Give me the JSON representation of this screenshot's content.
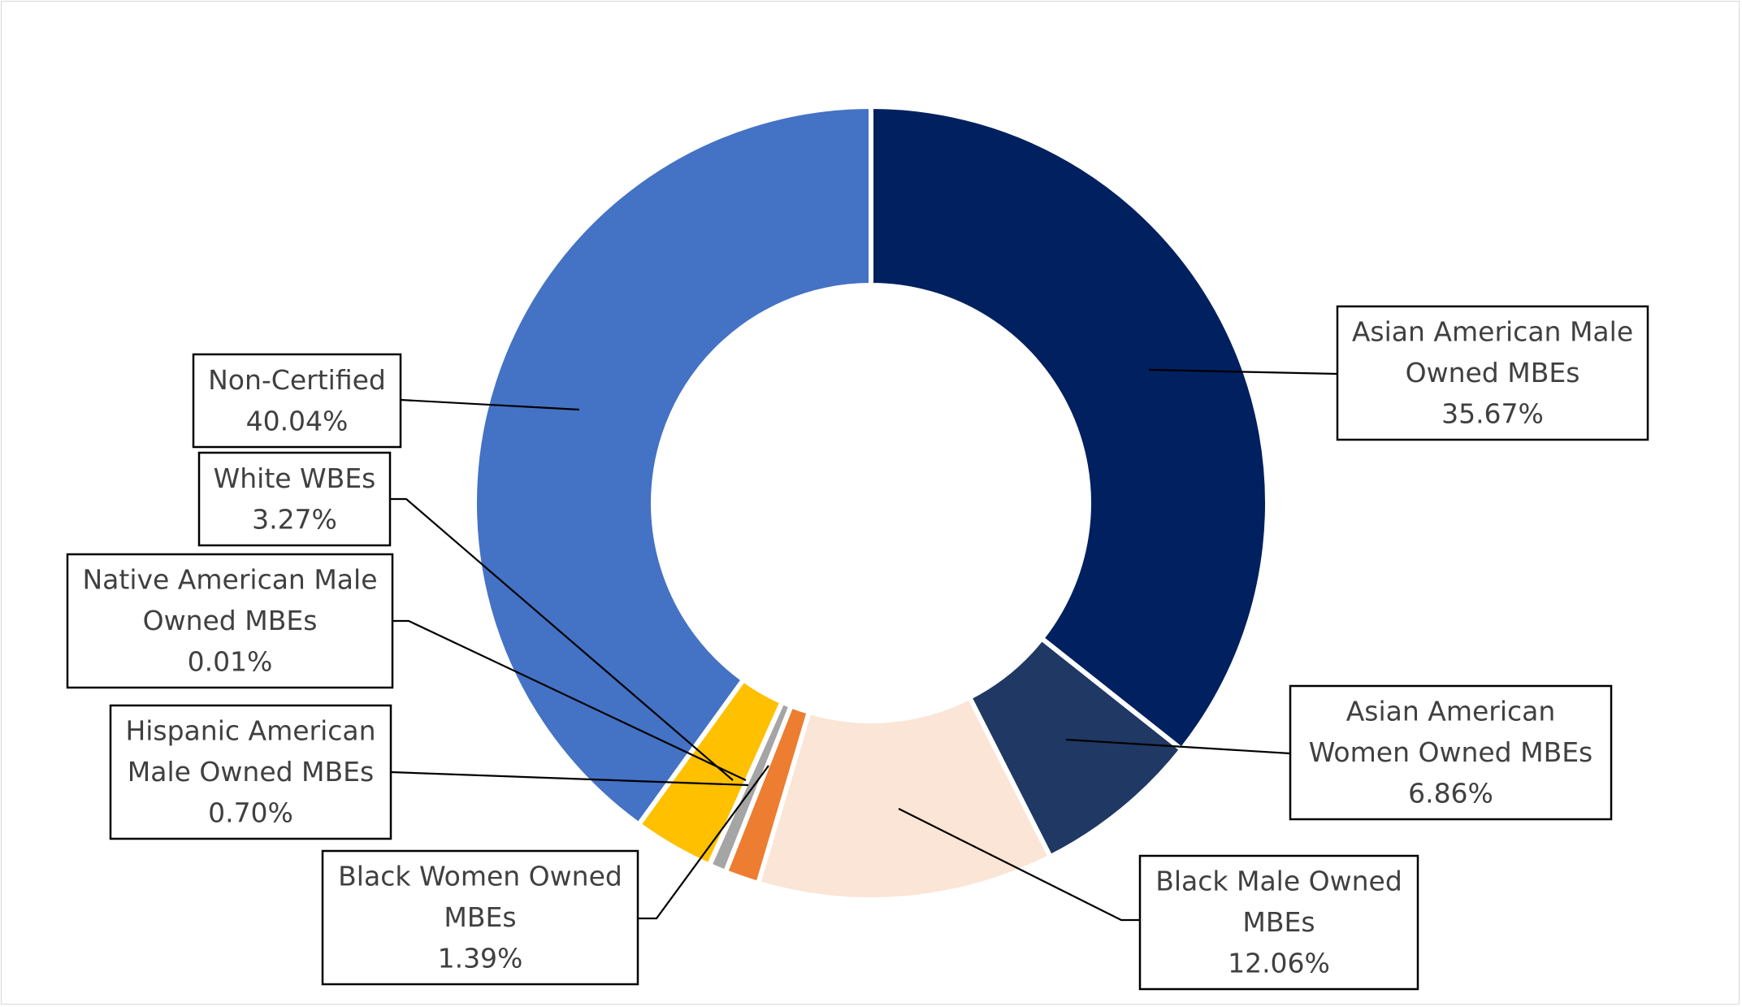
{
  "chart_data": {
    "type": "pie",
    "variant": "doughnut",
    "start_angle_deg": 0,
    "direction": "clockwise",
    "title": "",
    "legend": "none",
    "slices": [
      {
        "key": "asian_male",
        "label_lines": [
          "Asian American Male",
          "Owned MBEs"
        ],
        "value": 35.67,
        "display": "35.67%",
        "color": "#002060"
      },
      {
        "key": "asian_women",
        "label_lines": [
          "Asian American",
          "Women Owned MBEs"
        ],
        "value": 6.86,
        "display": "6.86%",
        "color": "#1F3864"
      },
      {
        "key": "black_male",
        "label_lines": [
          "Black Male Owned",
          "MBEs"
        ],
        "value": 12.06,
        "display": "12.06%",
        "color": "#FBE5D6"
      },
      {
        "key": "black_women",
        "label_lines": [
          "Black Women Owned",
          "MBEs"
        ],
        "value": 1.39,
        "display": "1.39%",
        "color": "#ED7D31"
      },
      {
        "key": "hispanic_male",
        "label_lines": [
          "Hispanic American",
          "Male Owned MBEs"
        ],
        "value": 0.7,
        "display": "0.70%",
        "color": "#A5A5A5"
      },
      {
        "key": "native_male",
        "label_lines": [
          "Native American Male",
          "Owned MBEs"
        ],
        "value": 0.01,
        "display": "0.01%",
        "color": "#5B9BD5"
      },
      {
        "key": "white_wbes",
        "label_lines": [
          "White WBEs"
        ],
        "value": 3.27,
        "display": "3.27%",
        "color": "#FFC000"
      },
      {
        "key": "non_certified",
        "label_lines": [
          "Non-Certified"
        ],
        "value": 40.04,
        "display": "40.04%",
        "color": "#4472C4"
      }
    ]
  }
}
